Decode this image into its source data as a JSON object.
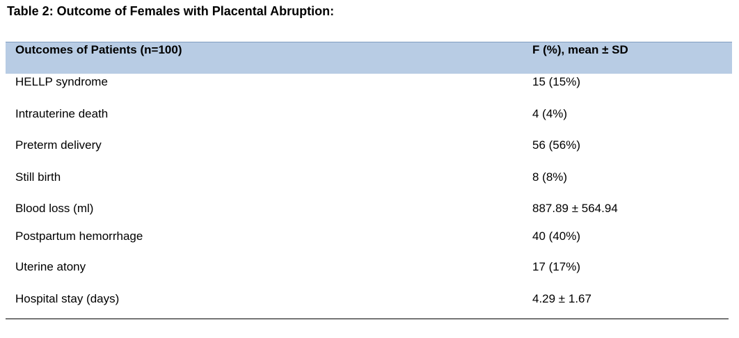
{
  "title": "Table 2: Outcome of Females with Placental Abruption:",
  "table": {
    "header": [
      "Outcomes of Patients (n=100)",
      "F (%), mean ± SD"
    ],
    "rows": [
      [
        "HELLP syndrome",
        "15 (15%)"
      ],
      [
        "Intrauterine death",
        "4 (4%)"
      ],
      [
        "Preterm delivery",
        "56 (56%)"
      ],
      [
        "Still birth",
        "8 (8%)"
      ],
      [
        "Blood loss (ml)",
        "887.89 ± 564.94"
      ],
      [
        "Postpartum hemorrhage",
        "40 (40%)"
      ],
      [
        "Uterine atony",
        "17 (17%)"
      ],
      [
        "Hospital stay (days)",
        "4.29 ± 1.67"
      ]
    ]
  }
}
